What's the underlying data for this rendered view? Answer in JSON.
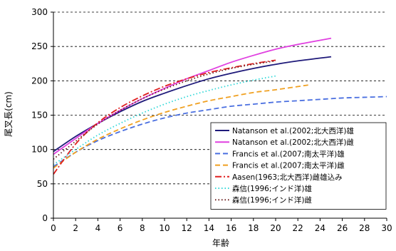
{
  "chart_data": {
    "type": "line",
    "xlabel": "年齢",
    "ylabel": "尾叉長(cm)",
    "xlim": [
      0,
      30
    ],
    "ylim": [
      0,
      300
    ],
    "xticks": [
      0,
      2,
      4,
      6,
      8,
      10,
      12,
      14,
      16,
      18,
      20,
      22,
      24,
      26,
      28,
      30
    ],
    "yticks": [
      0,
      50,
      100,
      150,
      200,
      250,
      300
    ],
    "grid": "horizontal dashed",
    "legend_position": "bottom-right",
    "series": [
      {
        "name": "Natanson et al.(2002;北大西洋)雄",
        "color": "#1f1a7a",
        "style": "solid",
        "x": [
          0,
          2,
          4,
          6,
          8,
          10,
          12,
          14,
          16,
          18,
          20,
          22,
          25
        ],
        "y": [
          97,
          119,
          138,
          155,
          170,
          182,
          193,
          203,
          211,
          218,
          224,
          229,
          235
        ]
      },
      {
        "name": "Natanson et al.(2002;北大西洋)雌",
        "color": "#e040e0",
        "style": "solid",
        "x": [
          0,
          2,
          4,
          6,
          8,
          10,
          12,
          14,
          16,
          18,
          20,
          22,
          25
        ],
        "y": [
          93,
          116,
          138,
          157,
          174,
          189,
          203,
          215,
          227,
          237,
          246,
          253,
          262
        ]
      },
      {
        "name": "Francis et al.(2007;南太平洋)雄",
        "color": "#4a6fe0",
        "style": "dashed",
        "x": [
          0,
          2,
          4,
          6,
          8,
          10,
          12,
          14,
          16,
          18,
          20,
          22,
          24,
          26,
          28,
          30
        ],
        "y": [
          75,
          96,
          113,
          126,
          137,
          146,
          153,
          158,
          163,
          166,
          169,
          171,
          173,
          175,
          176,
          177
        ]
      },
      {
        "name": "Francis et al.(2007;南太平洋)雌",
        "color": "#f0a020",
        "style": "dashed",
        "x": [
          0,
          2,
          4,
          6,
          8,
          10,
          12,
          14,
          16,
          18,
          20,
          23
        ],
        "y": [
          73,
          96,
          115,
          130,
          143,
          154,
          163,
          171,
          177,
          183,
          187,
          194
        ]
      },
      {
        "name": "Aasen(1963;北大西洋)雌雄込み",
        "color": "#e02020",
        "style": "dashdot",
        "x": [
          0,
          2,
          4,
          6,
          8,
          10,
          12,
          14,
          16,
          18,
          20
        ],
        "y": [
          64,
          108,
          139,
          161,
          178,
          192,
          203,
          212,
          219,
          225,
          230
        ]
      },
      {
        "name": "森信(1996;インド洋)雄",
        "color": "#30d8d8",
        "style": "dotted",
        "x": [
          0,
          2,
          4,
          6,
          8,
          10,
          12,
          14,
          16,
          18,
          20
        ],
        "y": [
          78,
          100,
          121,
          138,
          153,
          166,
          177,
          186,
          194,
          201,
          207
        ]
      },
      {
        "name": "森信(1996;インド洋)雌",
        "color": "#6b1e1e",
        "style": "dotted",
        "x": [
          0,
          2,
          4,
          6,
          8,
          10,
          12,
          14,
          16,
          18,
          20
        ],
        "y": [
          86,
          112,
          137,
          157,
          174,
          188,
          200,
          210,
          218,
          224,
          229
        ]
      }
    ]
  }
}
